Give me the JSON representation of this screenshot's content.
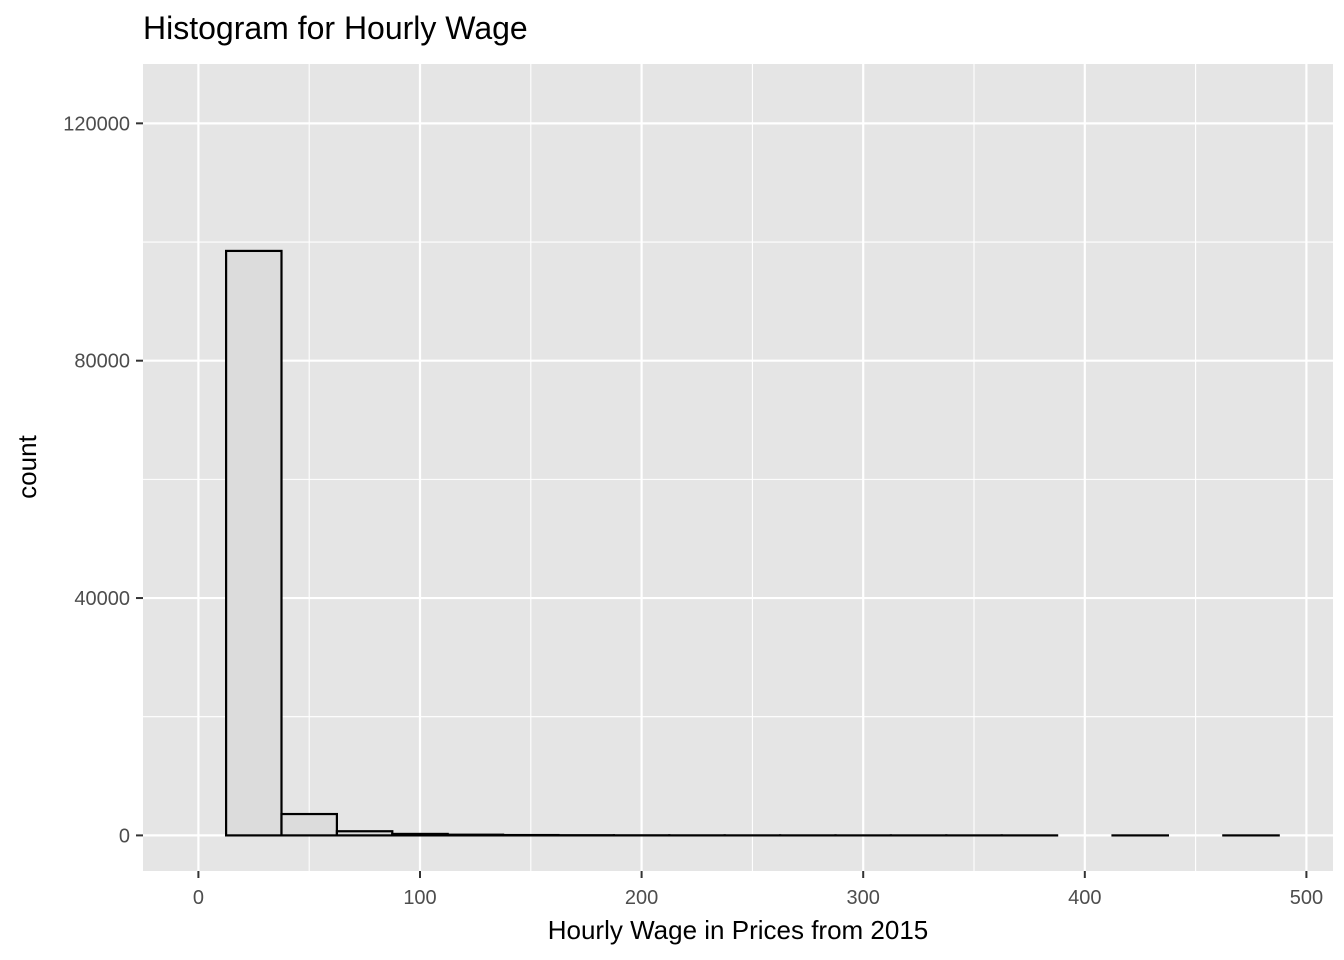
{
  "chart_data": {
    "type": "bar",
    "title": "Histogram for Hourly Wage",
    "xlabel": "Hourly Wage in Prices from 2015",
    "ylabel": "count",
    "xlim": [
      -25,
      512
    ],
    "ylim": [
      -6000,
      130000
    ],
    "x_ticks": [
      0,
      100,
      200,
      300,
      400,
      500
    ],
    "x_tick_labels": [
      "0",
      "100",
      "200",
      "300",
      "400",
      "500"
    ],
    "y_ticks": [
      0,
      40000,
      80000,
      120000
    ],
    "y_tick_labels": [
      "0",
      "40000",
      "80000",
      "120000"
    ],
    "bin_width": 25,
    "bins": [
      {
        "x0": 12.5,
        "x1": 37.5,
        "count": 98500
      },
      {
        "x0": 37.5,
        "x1": 62.5,
        "count": 3600
      },
      {
        "x0": 62.5,
        "x1": 87.5,
        "count": 700
      },
      {
        "x0": 87.5,
        "x1": 112.5,
        "count": 250
      },
      {
        "x0": 112.5,
        "x1": 137.5,
        "count": 120
      },
      {
        "x0": 137.5,
        "x1": 162.5,
        "count": 60
      },
      {
        "x0": 162.5,
        "x1": 187.5,
        "count": 30
      },
      {
        "x0": 187.5,
        "x1": 212.5,
        "count": 15
      },
      {
        "x0": 212.5,
        "x1": 237.5,
        "count": 8
      },
      {
        "x0": 237.5,
        "x1": 262.5,
        "count": 5
      },
      {
        "x0": 262.5,
        "x1": 287.5,
        "count": 3
      },
      {
        "x0": 287.5,
        "x1": 312.5,
        "count": 2
      },
      {
        "x0": 312.5,
        "x1": 337.5,
        "count": 1
      },
      {
        "x0": 337.5,
        "x1": 362.5,
        "count": 1
      },
      {
        "x0": 362.5,
        "x1": 387.5,
        "count": 1
      },
      {
        "x0": 387.5,
        "x1": 412.5,
        "count": 0
      },
      {
        "x0": 412.5,
        "x1": 437.5,
        "count": 1
      },
      {
        "x0": 437.5,
        "x1": 462.5,
        "count": 0
      },
      {
        "x0": 462.5,
        "x1": 487.5,
        "count": 1
      }
    ],
    "grid": true,
    "colors": {
      "panel_background": "#e5e5e5",
      "grid_major": "#ffffff",
      "bar_fill": "#dcdcdc",
      "bar_outline": "#000000"
    }
  }
}
